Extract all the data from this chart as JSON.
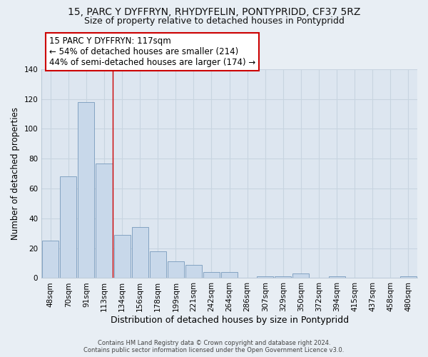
{
  "title": "15, PARC Y DYFFRYN, RHYDYFELIN, PONTYPRIDD, CF37 5RZ",
  "subtitle": "Size of property relative to detached houses in Pontypridd",
  "xlabel": "Distribution of detached houses by size in Pontypridd",
  "ylabel": "Number of detached properties",
  "bar_labels": [
    "48sqm",
    "70sqm",
    "91sqm",
    "113sqm",
    "134sqm",
    "156sqm",
    "178sqm",
    "199sqm",
    "221sqm",
    "242sqm",
    "264sqm",
    "286sqm",
    "307sqm",
    "329sqm",
    "350sqm",
    "372sqm",
    "394sqm",
    "415sqm",
    "437sqm",
    "458sqm",
    "480sqm"
  ],
  "bar_values": [
    25,
    68,
    118,
    77,
    29,
    34,
    18,
    11,
    9,
    4,
    4,
    0,
    1,
    1,
    3,
    0,
    1,
    0,
    0,
    0,
    1
  ],
  "bar_color": "#c8d8ea",
  "bar_edge_color": "#7799bb",
  "vline_color": "#cc0000",
  "annotation_title": "15 PARC Y DYFFRYN: 117sqm",
  "annotation_line1": "← 54% of detached houses are smaller (214)",
  "annotation_line2": "44% of semi-detached houses are larger (174) →",
  "annotation_box_color": "#ffffff",
  "annotation_box_edge": "#cc0000",
  "ylim": [
    0,
    140
  ],
  "yticks": [
    0,
    20,
    40,
    60,
    80,
    100,
    120,
    140
  ],
  "footer1": "Contains HM Land Registry data © Crown copyright and database right 2024.",
  "footer2": "Contains public sector information licensed under the Open Government Licence v3.0.",
  "bg_color": "#e8eef4",
  "plot_bg_color": "#dde6f0",
  "grid_color": "#c8d4e0",
  "title_fontsize": 10,
  "subtitle_fontsize": 9,
  "annot_fontsize": 8.5,
  "xlabel_fontsize": 9,
  "ylabel_fontsize": 8.5,
  "tick_fontsize": 7.5
}
